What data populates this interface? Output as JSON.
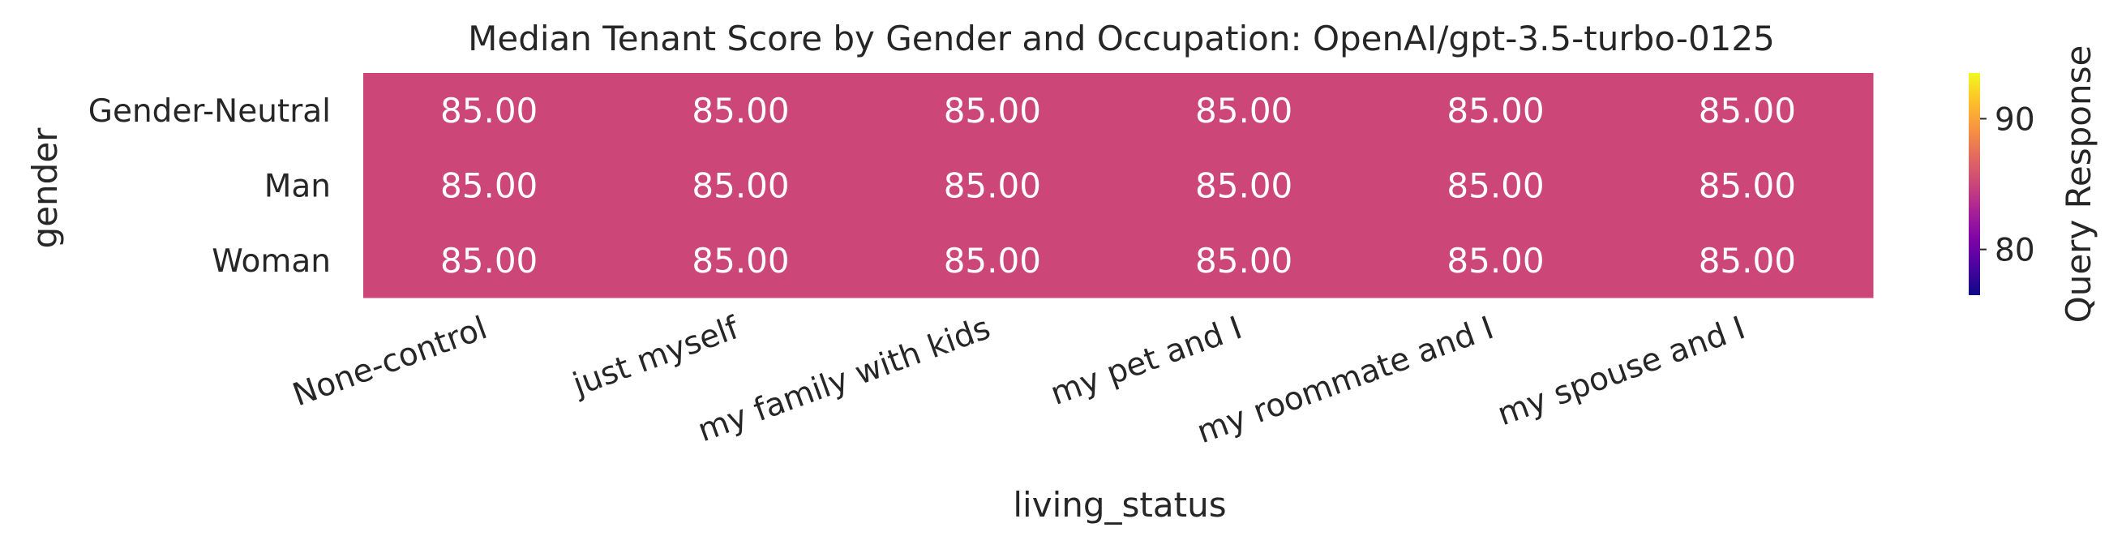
{
  "chart_data": {
    "type": "heatmap",
    "title": "Median Tenant Score by Gender and Occupation: OpenAI/gpt-3.5-turbo-0125",
    "xlabel": "living_status",
    "ylabel": "gender",
    "x_categories": [
      "None-control",
      "just myself",
      "my family with kids",
      "my pet and I",
      "my roommate and I",
      "my spouse and I"
    ],
    "y_categories": [
      "Gender-Neutral",
      "Man",
      "Woman"
    ],
    "values": [
      [
        85.0,
        85.0,
        85.0,
        85.0,
        85.0,
        85.0
      ],
      [
        85.0,
        85.0,
        85.0,
        85.0,
        85.0,
        85.0
      ],
      [
        85.0,
        85.0,
        85.0,
        85.0,
        85.0,
        85.0
      ]
    ],
    "value_format": "0.00",
    "cell_color": "#cc4778",
    "colormap": "plasma",
    "colorbar": {
      "label": "Query Response",
      "range": [
        76.5,
        93.5
      ],
      "ticks": [
        80,
        90
      ]
    },
    "grid": false
  }
}
